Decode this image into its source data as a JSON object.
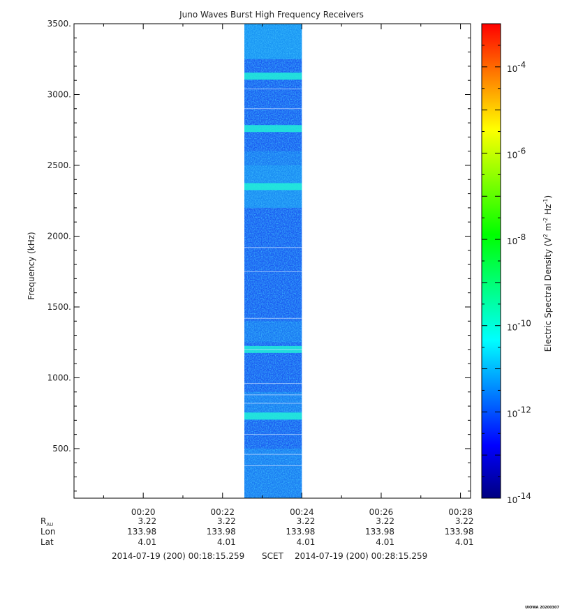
{
  "chart_data": {
    "type": "heatmap",
    "title": "Juno Waves Burst High Frequency Receivers",
    "ylabel": "Frequency (kHz)",
    "y_ticks": [
      "500.",
      "1000.",
      "1500.",
      "2000.",
      "2500.",
      "3000.",
      "3500."
    ],
    "y_tick_values": [
      500,
      1000,
      1500,
      2000,
      2500,
      3000,
      3500
    ],
    "ylim": [
      150,
      3500
    ],
    "x_ticks": [
      "00:20",
      "00:22",
      "00:24",
      "00:26",
      "00:28"
    ],
    "x_tick_minutes": [
      20,
      22,
      24,
      26,
      28
    ],
    "xlim_minutes": [
      18.254,
      28.254
    ],
    "data_span_minutes": [
      22.55,
      24.0
    ],
    "bright_bands_khz": [
      3130,
      2760,
      2350,
      1200,
      730
    ],
    "gap_lines_khz": [
      3040,
      2900,
      1920,
      1750,
      1420,
      1200,
      960,
      880,
      820,
      600,
      460,
      380
    ],
    "colorbar": {
      "label": "Electric Spectral Density (V² m⁻² Hz⁻¹)",
      "label_main": "Electric Spectral Density (V",
      "label_sup1": "2",
      "label_mid": " m",
      "label_sup2": "-2",
      "label_hz": " Hz",
      "label_sup3": "-1",
      "label_end": ")",
      "scale": "log",
      "range": [
        "1e-14",
        "1e-3"
      ],
      "tick_exponents": [
        "-4",
        "-6",
        "-8",
        "-10",
        "-12",
        "-14"
      ],
      "tick_base": "10",
      "colors": [
        "#000080",
        "#0000ff",
        "#0080ff",
        "#00ffff",
        "#00ff80",
        "#00ff00",
        "#80ff00",
        "#ffff00",
        "#ff8000",
        "#ff0000"
      ]
    }
  },
  "ephemeris": {
    "rows": [
      {
        "label": "R",
        "sub": "AU",
        "values": [
          "3.22",
          "3.22",
          "3.22",
          "3.22",
          "3.22"
        ]
      },
      {
        "label": "Lon",
        "sub": "",
        "values": [
          "133.98",
          "133.98",
          "133.98",
          "133.98",
          "133.98"
        ]
      },
      {
        "label": "Lat",
        "sub": "",
        "values": [
          "4.01",
          "4.01",
          "4.01",
          "4.01",
          "4.01"
        ]
      }
    ]
  },
  "time_range": {
    "start": "2014-07-19 (200) 00:18:15.259",
    "system": "SCET",
    "end": "2014-07-19 (200) 00:28:15.259"
  },
  "credit": "UIOWA 20200307"
}
